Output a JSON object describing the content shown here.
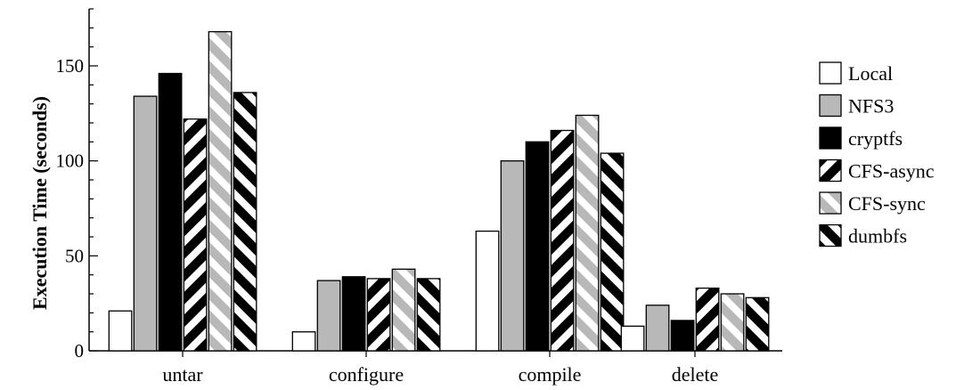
{
  "chart_data": {
    "type": "bar",
    "title": "",
    "xlabel": "",
    "ylabel": "Execution Time (seconds)",
    "ylim": [
      0,
      180
    ],
    "yticks": [
      0,
      50,
      100,
      150
    ],
    "grid": false,
    "legend_position": "right",
    "categories": [
      "untar",
      "configure",
      "compile",
      "delete"
    ],
    "series": [
      {
        "name": "Local",
        "values": [
          21,
          10,
          63,
          13
        ],
        "fill": "white"
      },
      {
        "name": "NFS3",
        "values": [
          134,
          37,
          100,
          24
        ],
        "fill": "gray"
      },
      {
        "name": "cryptfs",
        "values": [
          146,
          39,
          110,
          16
        ],
        "fill": "black"
      },
      {
        "name": "CFS-async",
        "values": [
          122,
          38,
          116,
          33
        ],
        "fill": "black-white-stripes"
      },
      {
        "name": "CFS-sync",
        "values": [
          168,
          43,
          124,
          30
        ],
        "fill": "gray-white-stripes"
      },
      {
        "name": "dumbfs",
        "values": [
          136,
          38,
          104,
          28
        ],
        "fill": "black-white-stripes-reverse"
      }
    ],
    "colors": {
      "gray": "#b8b8b8",
      "black": "#000000",
      "white": "#ffffff"
    }
  }
}
